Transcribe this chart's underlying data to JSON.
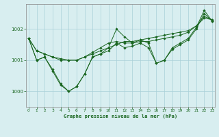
{
  "bg_color": "#d8eef0",
  "grid_color": "#aad0d8",
  "line_color": "#1a6620",
  "marker_color": "#1a6620",
  "title": "Graphe pression niveau de la mer (hPa)",
  "title_color": "#1a6620",
  "xlim": [
    -0.3,
    23.3
  ],
  "ylim": [
    999.5,
    1002.8
  ],
  "yticks": [
    1000,
    1001,
    1002
  ],
  "xticks": [
    0,
    1,
    2,
    3,
    4,
    5,
    6,
    7,
    8,
    9,
    10,
    11,
    12,
    13,
    14,
    15,
    16,
    17,
    18,
    19,
    20,
    21,
    22,
    23
  ],
  "series": [
    [
      1001.7,
      1001.3,
      1001.2,
      1001.1,
      1001.0,
      1001.0,
      1001.0,
      1001.1,
      1001.2,
      1001.3,
      1001.4,
      1001.5,
      1001.6,
      1001.6,
      1001.65,
      1001.7,
      1001.75,
      1001.8,
      1001.85,
      1001.9,
      1001.95,
      1002.1,
      1002.35,
      1002.3
    ],
    [
      1001.7,
      1001.3,
      1001.2,
      1001.1,
      1001.05,
      1001.0,
      1001.0,
      1001.1,
      1001.25,
      1001.4,
      1001.55,
      1001.6,
      1001.55,
      1001.55,
      1001.6,
      1001.6,
      1001.65,
      1001.7,
      1001.75,
      1001.8,
      1001.9,
      1002.1,
      1002.4,
      1002.3
    ],
    [
      1001.7,
      1001.0,
      1001.1,
      1000.7,
      1000.25,
      1000.0,
      1000.15,
      1000.55,
      1001.1,
      1001.2,
      1001.3,
      1001.55,
      1001.4,
      1001.45,
      1001.55,
      1001.4,
      1000.9,
      1001.0,
      1001.35,
      1001.5,
      1001.65,
      1002.0,
      1002.5,
      1002.25
    ],
    [
      1001.7,
      1001.0,
      1001.1,
      1000.65,
      1000.2,
      1000.0,
      1000.15,
      1000.55,
      1001.1,
      1001.2,
      1001.4,
      1002.0,
      1001.75,
      1001.55,
      1001.65,
      1001.55,
      1000.9,
      1001.0,
      1001.4,
      1001.55,
      1001.7,
      1002.05,
      1002.6,
      1002.25
    ]
  ]
}
